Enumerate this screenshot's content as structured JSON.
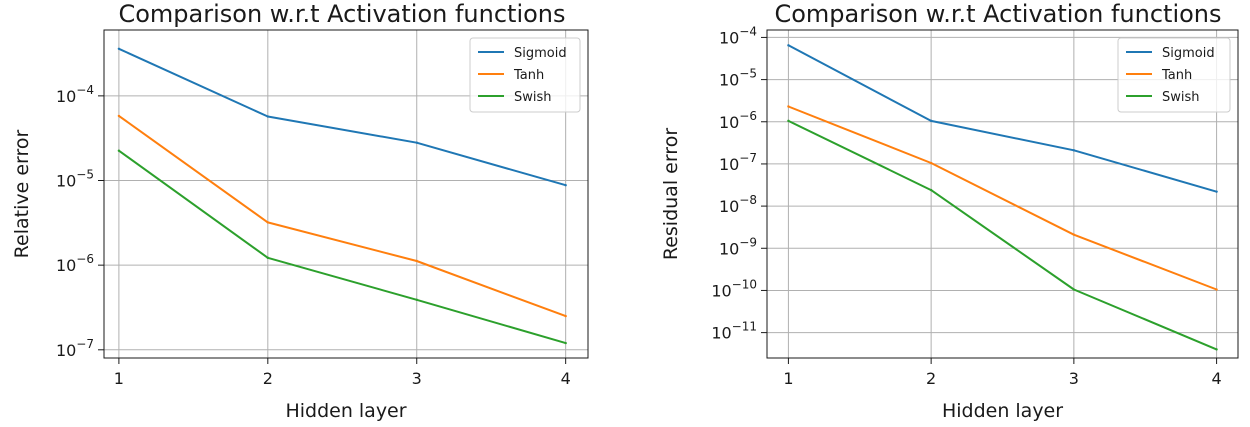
{
  "chart_data": [
    {
      "type": "line",
      "title": "Comparison w.r.t Activation functions",
      "xlabel": "Hidden layer",
      "ylabel": "Relative error",
      "yscale": "log",
      "x": [
        1,
        2,
        3,
        4
      ],
      "xticks": [
        "1",
        "2",
        "3",
        "4"
      ],
      "yticks": [
        {
          "value": 1e-07,
          "base": "10",
          "exp": "−7"
        },
        {
          "value": 1e-06,
          "base": "10",
          "exp": "−6"
        },
        {
          "value": 1e-05,
          "base": "10",
          "exp": "−5"
        },
        {
          "value": 0.0001,
          "base": "10",
          "exp": "−4"
        }
      ],
      "ylim": [
        8e-08,
        0.0006
      ],
      "xlim": [
        0.9,
        4.15
      ],
      "grid": true,
      "legend": "top-right",
      "series": [
        {
          "name": "Sigmoid",
          "color": "#1f77b4",
          "values": [
            0.00036,
            5.7e-05,
            2.8e-05,
            8.8e-06
          ]
        },
        {
          "name": "Tanh",
          "color": "#ff7f0e",
          "values": [
            5.8e-05,
            3.2e-06,
            1.12e-06,
            2.5e-07
          ]
        },
        {
          "name": "Swish",
          "color": "#2ca02c",
          "values": [
            2.25e-05,
            1.22e-06,
            3.9e-07,
            1.2e-07
          ]
        }
      ]
    },
    {
      "type": "line",
      "title": "Comparison w.r.t Activation functions",
      "xlabel": "Hidden layer",
      "ylabel": "Residual error",
      "yscale": "log",
      "x": [
        1,
        2,
        3,
        4
      ],
      "xticks": [
        "1",
        "2",
        "3",
        "4"
      ],
      "yticks": [
        {
          "value": 1e-11,
          "base": "10",
          "exp": "−11"
        },
        {
          "value": 1e-10,
          "base": "10",
          "exp": "−10"
        },
        {
          "value": 1e-09,
          "base": "10",
          "exp": "−9"
        },
        {
          "value": 1e-08,
          "base": "10",
          "exp": "−8"
        },
        {
          "value": 1e-07,
          "base": "10",
          "exp": "−7"
        },
        {
          "value": 1e-06,
          "base": "10",
          "exp": "−6"
        },
        {
          "value": 1e-05,
          "base": "10",
          "exp": "−5"
        },
        {
          "value": 0.0001,
          "base": "10",
          "exp": "−4"
        }
      ],
      "ylim": [
        2.5e-12,
        0.00015
      ],
      "xlim": [
        0.85,
        4.15
      ],
      "grid": true,
      "legend": "top-right",
      "series": [
        {
          "name": "Sigmoid",
          "color": "#1f77b4",
          "values": [
            6.5e-05,
            1.05e-06,
            2.1e-07,
            2.2e-08
          ]
        },
        {
          "name": "Tanh",
          "color": "#ff7f0e",
          "values": [
            2.3e-06,
            1.05e-07,
            2.1e-09,
            1.05e-10
          ]
        },
        {
          "name": "Swish",
          "color": "#2ca02c",
          "values": [
            1.05e-06,
            2.4e-08,
            1.05e-10,
            4e-12
          ]
        }
      ]
    }
  ]
}
